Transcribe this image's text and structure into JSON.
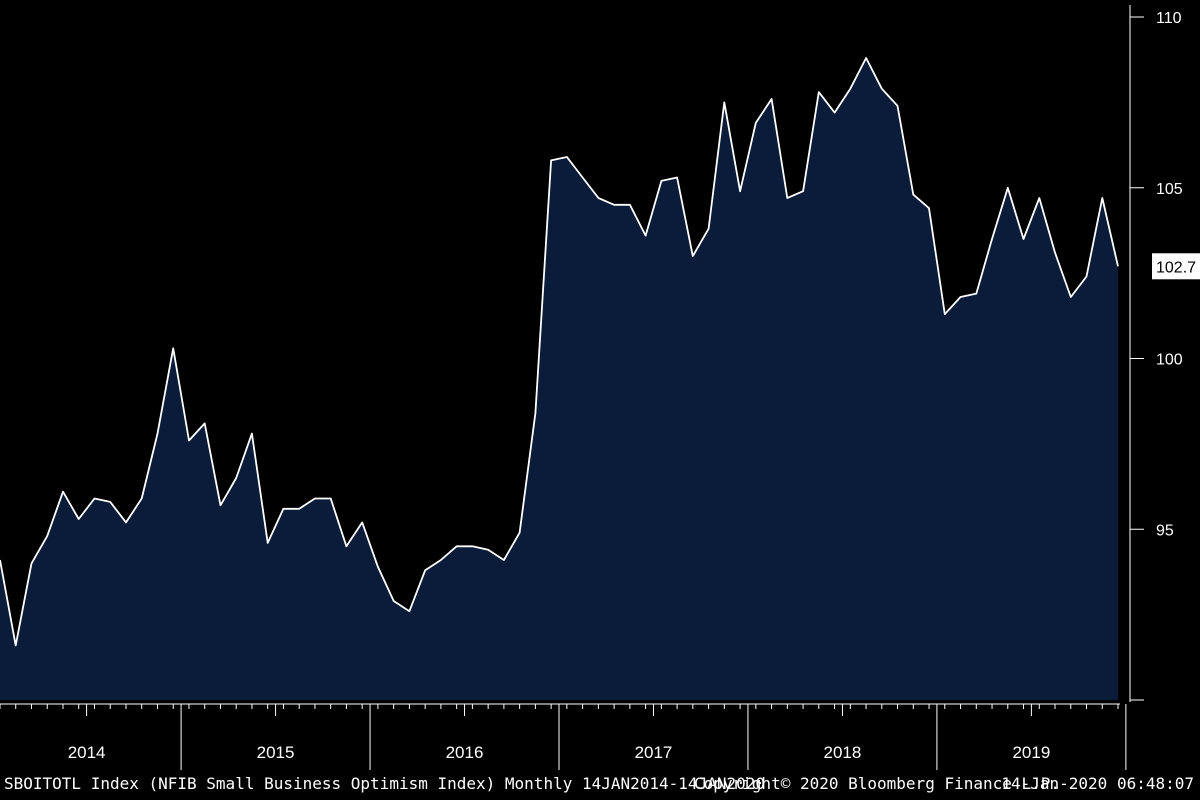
{
  "colors": {
    "background": "#000000",
    "area_fill": "#0a1c3a",
    "line": "#ffffff",
    "axis": "#ffffff"
  },
  "footer": {
    "left": "SBOITOTL Index (NFIB Small Business Optimism Index)  Monthly 14JAN2014-14JAN2020",
    "middle": "Copyright© 2020 Bloomberg Finance L.P.",
    "right": "14-Jan-2020 06:48:07"
  },
  "chart_data": {
    "type": "area",
    "title": "",
    "xlabel": "",
    "ylabel": "",
    "ylim": [
      90,
      110
    ],
    "y_ticks": [
      95,
      100,
      105,
      110
    ],
    "x_ticks": [
      "2014",
      "2015",
      "2016",
      "2017",
      "2018",
      "2019"
    ],
    "last_value_label": "102.7",
    "grid": false,
    "legend": "none",
    "start": "2014-01",
    "series": [
      {
        "values": [
          94.1,
          91.6,
          94.0,
          94.8,
          96.1,
          95.3,
          95.9,
          95.8,
          95.2,
          95.9,
          97.8,
          100.3,
          97.6,
          98.1,
          95.7,
          96.5,
          97.8,
          94.6,
          95.6,
          95.6,
          95.9,
          95.9,
          94.5,
          95.2,
          93.9,
          92.9,
          92.6,
          93.8,
          94.1,
          94.5,
          94.5,
          94.4,
          94.1,
          94.9,
          98.4,
          105.8,
          105.9,
          105.3,
          104.7,
          104.5,
          104.5,
          103.6,
          105.2,
          105.3,
          103.0,
          103.8,
          107.5,
          104.9,
          106.9,
          107.6,
          104.7,
          104.9,
          107.8,
          107.2,
          107.9,
          108.8,
          107.9,
          107.4,
          104.8,
          104.4,
          101.3,
          101.8,
          101.9,
          103.5,
          105.0,
          103.5,
          104.7,
          103.1,
          101.8,
          102.4,
          104.7,
          102.7
        ]
      }
    ]
  }
}
